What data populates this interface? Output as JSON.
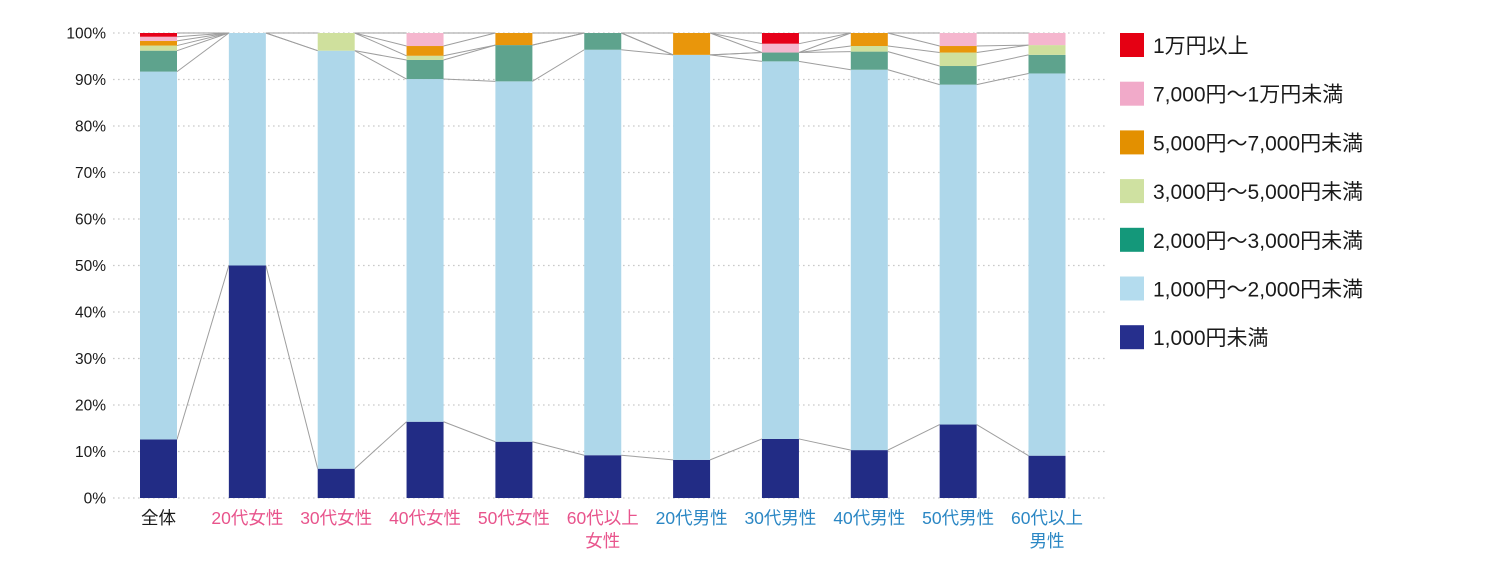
{
  "chart_data": {
    "type": "bar",
    "variant": "100-percent-stacked-column",
    "title": "",
    "xlabel": "",
    "ylabel": "",
    "y_axis": {
      "min": 0,
      "max": 100,
      "step": 10,
      "tick_suffix": "%",
      "tick_labels": [
        "0%",
        "10%",
        "20%",
        "30%",
        "40%",
        "50%",
        "60%",
        "70%",
        "80%",
        "90%",
        "100%"
      ],
      "tick_color": "#1a1a1a",
      "grid": "dotted-horizontal",
      "grid_color": "#c9c9c9"
    },
    "connector_lines": true,
    "connector_line_color": "#9e9e9e",
    "legend_position": "right",
    "legend_text_color": "#1a1a1a",
    "categories": [
      {
        "label": "全体",
        "label2": "",
        "color": "#1a1a1a"
      },
      {
        "label": "20代女性",
        "label2": "",
        "color": "#e8548c"
      },
      {
        "label": "30代女性",
        "label2": "",
        "color": "#e8548c"
      },
      {
        "label": "40代女性",
        "label2": "",
        "color": "#e8548c"
      },
      {
        "label": "50代女性",
        "label2": "",
        "color": "#e8548c"
      },
      {
        "label": "60代以上",
        "label2": "女性",
        "color": "#e8548c"
      },
      {
        "label": "20代男性",
        "label2": "",
        "color": "#2b87c4"
      },
      {
        "label": "30代男性",
        "label2": "",
        "color": "#2b87c4"
      },
      {
        "label": "40代男性",
        "label2": "",
        "color": "#2b87c4"
      },
      {
        "label": "50代男性",
        "label2": "",
        "color": "#2b87c4"
      },
      {
        "label": "60代以上",
        "label2": "男性",
        "color": "#2b87c4"
      }
    ],
    "series": [
      {
        "name": "1,000円未満",
        "bar_color": "#222c85",
        "swatch_color": "#262f8d",
        "values": [
          12.6,
          50.0,
          6.3,
          16.4,
          12.1,
          9.2,
          8.2,
          12.7,
          10.3,
          15.8,
          9.1
        ]
      },
      {
        "name": "1,000円～2,000円未満",
        "bar_color": "#aed7ea",
        "swatch_color": "#b4dcee",
        "values": [
          79.1,
          50.0,
          89.9,
          73.7,
          77.5,
          87.2,
          87.1,
          81.2,
          81.8,
          73.1,
          82.2
        ]
      },
      {
        "name": "2,000円～3,000円未満",
        "bar_color": "#5ea38d",
        "swatch_color": "#14987a",
        "values": [
          4.5,
          0,
          0,
          4.1,
          7.8,
          3.6,
          0,
          1.9,
          3.9,
          4.0,
          4.0
        ]
      },
      {
        "name": "3,000円～5,000円未満",
        "bar_color": "#cfe09d",
        "swatch_color": "#cfe1a1",
        "values": [
          1.1,
          0,
          3.8,
          0.9,
          0,
          0,
          0,
          0,
          1.2,
          2.9,
          2.1
        ]
      },
      {
        "name": "5,000円～7,000円未満",
        "bar_color": "#e9960b",
        "swatch_color": "#e39000",
        "values": [
          1.0,
          0,
          0,
          2.1,
          2.6,
          0,
          4.7,
          0,
          2.8,
          1.4,
          0
        ]
      },
      {
        "name": "7,000円～1万円未満",
        "bar_color": "#f5b6ce",
        "swatch_color": "#f1aac9",
        "values": [
          0.9,
          0,
          0,
          2.8,
          0,
          0,
          0,
          1.9,
          0,
          2.8,
          2.6
        ]
      },
      {
        "name": "1万円以上",
        "bar_color": "#e60019",
        "swatch_color": "#e50013",
        "values": [
          0.8,
          0,
          0,
          0,
          0,
          0,
          0,
          2.3,
          0,
          0,
          0
        ]
      }
    ],
    "legend_order": "reverse-of-stacking"
  }
}
